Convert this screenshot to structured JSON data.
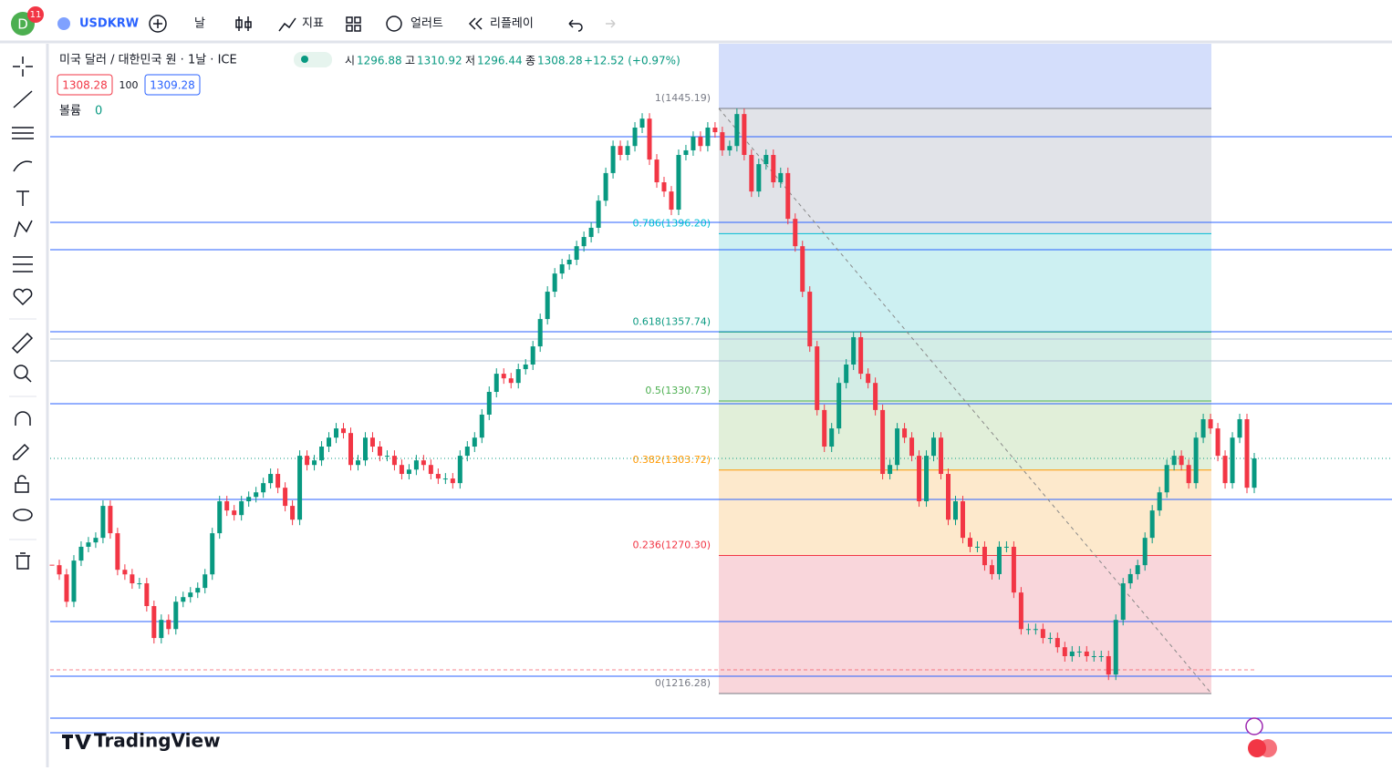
{
  "toolbar": {
    "avatar": "D",
    "badge": "11",
    "symbol": "USDKRW",
    "interval": "날",
    "indicators": "지표",
    "alerts": "얼러트",
    "replay": "리플레이"
  },
  "legend": {
    "title": "미국 달러 / 대한민국 원 · 1날 · ICE",
    "o_label": "시",
    "o": "1296.88",
    "h_label": "고",
    "h": "1310.92",
    "l_label": "저",
    "l": "1296.44",
    "c_label": "종",
    "c": "1308.28",
    "change": "+12.52 (+0.97%)",
    "bid": "1308.28",
    "spread": "100",
    "ask": "1309.28",
    "volume_label": "볼륨",
    "volume": "0"
  },
  "brand": "TradingView",
  "chart_data": {
    "type": "candlestick",
    "closes": [
      1266.5,
      1262.9,
      1252.2,
      1268.3,
      1273.7,
      1275.4,
      1277.2,
      1289.7,
      1279.0,
      1264.7,
      1262.9,
      1259.4,
      1259.4,
      1250.5,
      1238.0,
      1245.1,
      1241.5,
      1252.2,
      1254.0,
      1255.8,
      1257.6,
      1262.9,
      1279.0,
      1291.5,
      1287.9,
      1286.1,
      1291.5,
      1293.2,
      1295.0,
      1298.6,
      1302.2,
      1296.8,
      1289.7,
      1284.3,
      1309.3,
      1305.7,
      1307.5,
      1312.9,
      1316.4,
      1320.0,
      1318.2,
      1305.7,
      1307.5,
      1316.4,
      1312.9,
      1309.3,
      1309.3,
      1305.7,
      1302.2,
      1303.9,
      1307.5,
      1305.7,
      1302.2,
      1300.4,
      1300.4,
      1298.6,
      1309.3,
      1312.9,
      1316.4,
      1325.4,
      1334.3,
      1341.4,
      1339.6,
      1337.8,
      1343.2,
      1345.0,
      1352.1,
      1362.8,
      1373.5,
      1380.6,
      1384.2,
      1386.0,
      1391.3,
      1394.9,
      1398.5,
      1409.1,
      1419.9,
      1430.5,
      1427.0,
      1430.5,
      1437.7,
      1441.2,
      1425.2,
      1416.3,
      1412.7,
      1405.6,
      1427.0,
      1428.8,
      1434.1,
      1430.5,
      1437.7,
      1435.9,
      1428.8,
      1430.5,
      1443.0,
      1427.0,
      1412.7,
      1423.4,
      1427.0,
      1416.3,
      1419.9,
      1402.0,
      1391.3,
      1373.5,
      1352.1,
      1327.2,
      1312.9,
      1320.0,
      1337.8,
      1345.0,
      1355.7,
      1341.4,
      1337.8,
      1327.2,
      1302.2,
      1305.7,
      1320.0,
      1316.4,
      1309.3,
      1291.5,
      1309.3,
      1316.4,
      1302.2,
      1284.3,
      1291.5,
      1277.2,
      1273.7,
      1273.7,
      1266.5,
      1263.0,
      1273.7,
      1273.7,
      1255.8,
      1241.5,
      1241.5,
      1241.5,
      1238.0,
      1238.0,
      1234.4,
      1230.9,
      1232.7,
      1232.7,
      1230.9,
      1230.9,
      1230.9,
      1223.7,
      1245.1,
      1259.4,
      1263.0,
      1266.5,
      1277.2,
      1287.9,
      1295.0,
      1305.7,
      1309.3,
      1305.7,
      1298.6,
      1316.4,
      1323.6,
      1320.0,
      1309.3,
      1298.6,
      1316.4,
      1323.6,
      1296.8,
      1308.28
    ],
    "up_color": "#089981",
    "down_color": "#f23645",
    "fib": {
      "levels": [
        {
          "label": "1(1445.19)",
          "price": 1445.19,
          "color": "#787b86"
        },
        {
          "label": "0.786(1396.20)",
          "price": 1396.2,
          "color": "#00bcd4"
        },
        {
          "label": "0.618(1357.74)",
          "price": 1357.74,
          "color": "#089981"
        },
        {
          "label": "0.5(1330.73)",
          "price": 1330.73,
          "color": "#4caf50"
        },
        {
          "label": "0.382(1303.72)",
          "price": 1303.72,
          "color": "#ff9800"
        },
        {
          "label": "0.236(1270.30)",
          "price": 1270.3,
          "color": "#f23645"
        },
        {
          "label": "0(1216.28)",
          "price": 1216.28,
          "color": "#787b86"
        }
      ]
    }
  }
}
